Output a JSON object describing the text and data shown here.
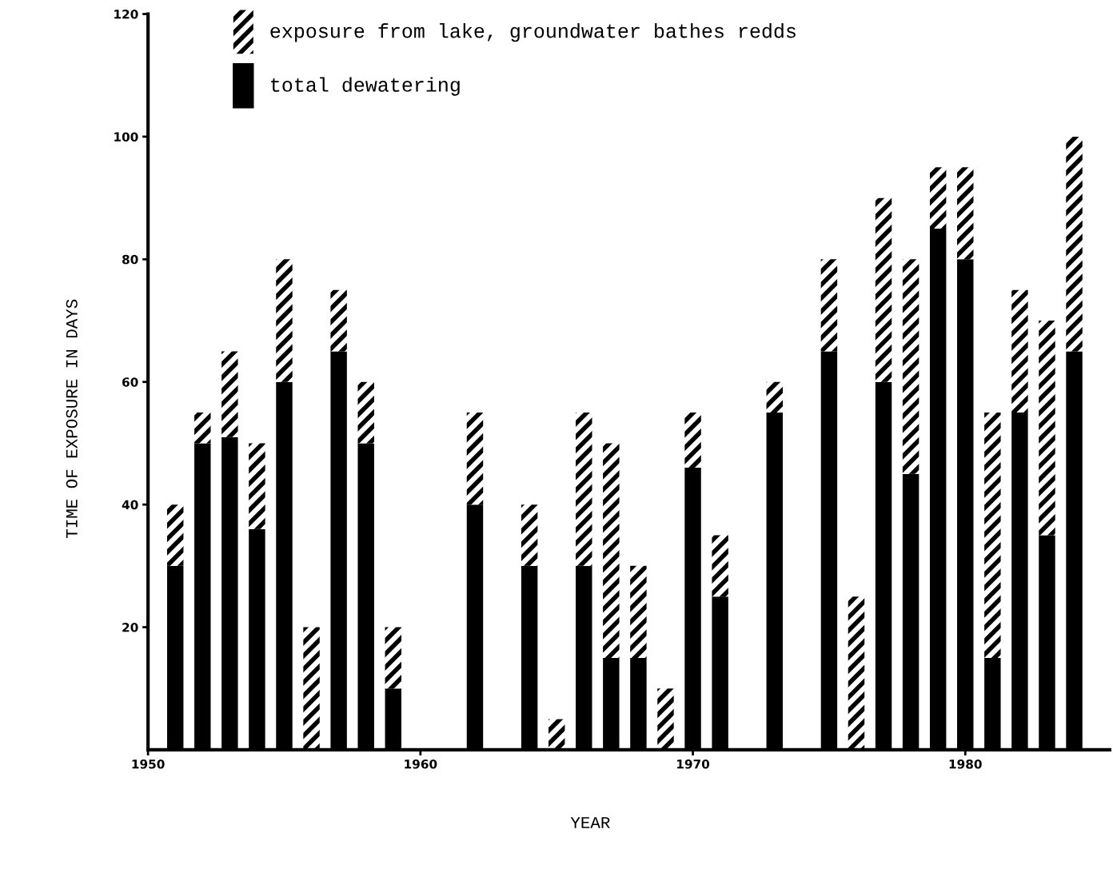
{
  "chart_data": {
    "type": "bar",
    "stacked": true,
    "xlabel": "YEAR",
    "ylabel": "TIME OF EXPOSURE IN DAYS",
    "x": [
      1951,
      1952,
      1953,
      1954,
      1955,
      1956,
      1957,
      1958,
      1959,
      1962,
      1964,
      1965,
      1966,
      1967,
      1968,
      1969,
      1970,
      1971,
      1973,
      1975,
      1976,
      1977,
      1978,
      1979,
      1980,
      1981,
      1982,
      1983,
      1984
    ],
    "series": [
      {
        "name": "total dewatering",
        "color": "#000000",
        "values": [
          30,
          50,
          51,
          36,
          60,
          0,
          65,
          50,
          10,
          40,
          30,
          0,
          30,
          15,
          15,
          0,
          46,
          25,
          55,
          65,
          0,
          60,
          45,
          85,
          80,
          15,
          55,
          35,
          65
        ]
      },
      {
        "name": "exposure from lake, groundwater bathes redds",
        "color": "#000000",
        "values": [
          10,
          5,
          14,
          14,
          20,
          20,
          10,
          10,
          10,
          15,
          10,
          5,
          25,
          35,
          15,
          10,
          9,
          10,
          5,
          15,
          25,
          30,
          35,
          10,
          15,
          40,
          20,
          35,
          35
        ]
      }
    ],
    "xlim": [
      1950,
      1985.3
    ],
    "xticks": [
      1950,
      1960,
      1970,
      1980
    ],
    "ylim": [
      0,
      120
    ],
    "yticks": [
      20,
      40,
      60,
      80,
      100,
      120
    ],
    "grid": false,
    "legend": "top left"
  }
}
